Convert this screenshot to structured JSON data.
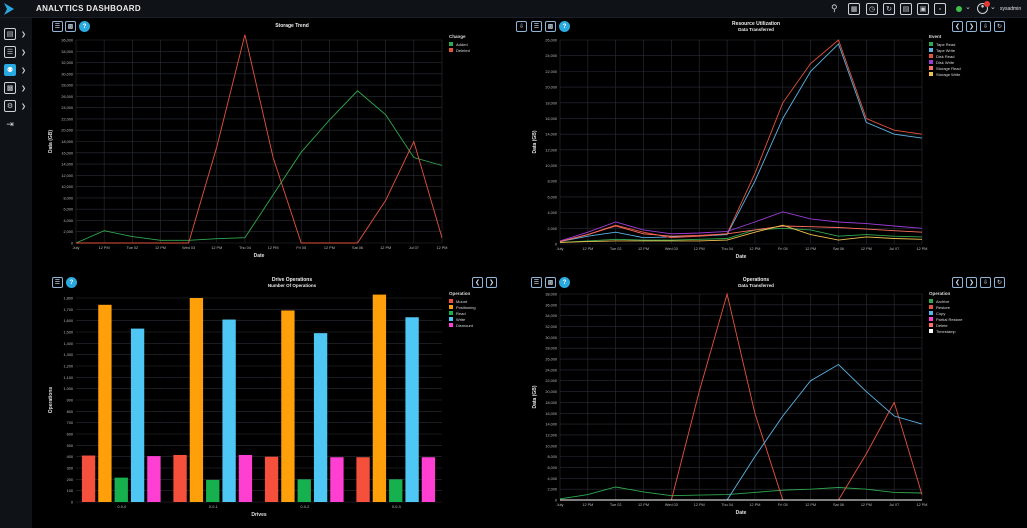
{
  "app": {
    "title": "ANALYTICS DASHBOARD"
  },
  "topbar": {
    "icons": [
      "search-icon",
      "film-icon",
      "history-icon",
      "refresh-icon",
      "report-icon",
      "server-icon",
      "clipboard-icon"
    ],
    "status_color": "#3fbf4a",
    "user_name": "sysadmin"
  },
  "sidebar": {
    "items": [
      {
        "icon": "chart-icon"
      },
      {
        "icon": "storage-icon"
      },
      {
        "icon": "person-icon",
        "active": true
      },
      {
        "icon": "drive-icon"
      },
      {
        "icon": "settings-icon"
      },
      {
        "icon": "logout-icon"
      }
    ]
  },
  "colors": {
    "accent": "#29a9e1",
    "grid": "#2a2e37",
    "axis_text": "#bdbdbd"
  },
  "panels": {
    "storage": {
      "title": "Storage Trend",
      "subtitle": "",
      "legend_title": "Change",
      "chart_data": {
        "type": "line",
        "title": "Storage Trend",
        "xlabel": "Date",
        "ylabel": "Data (GB)",
        "ylim": [
          0,
          38000
        ],
        "yticks": [
          "0",
          "2,000",
          "4,000",
          "6,000",
          "8,000",
          "10,000",
          "12,000",
          "14,000",
          "16,000",
          "18,000",
          "20,000",
          "22,000",
          "24,000",
          "26,000",
          "28,000",
          "30,000",
          "32,000",
          "34,000",
          "36,000"
        ],
        "x": [
          "July",
          "12 PM",
          "Tue 02",
          "12 PM",
          "Wed 03",
          "12 PM",
          "Thu 04",
          "12 PM",
          "Fri 05",
          "12 PM",
          "Sat 06",
          "12 PM",
          "Jul 07",
          "12 PM"
        ],
        "series": [
          {
            "name": "Added",
            "color": "#2fa84f",
            "values": [
              0,
              2300,
              1200,
              500,
              500,
              800,
              1000,
              9000,
              17000,
              23000,
              28500,
              24000,
              16000,
              14500
            ]
          },
          {
            "name": "Deleted",
            "color": "#e5533d",
            "values": [
              0,
              0,
              0,
              0,
              0,
              18000,
              39000,
              16000,
              0,
              0,
              0,
              8000,
              19000,
              1000
            ]
          }
        ]
      }
    },
    "resource": {
      "title": "Resource Utilization",
      "subtitle": "Data Transferred",
      "legend_title": "Event",
      "chart_data": {
        "type": "line",
        "title": "Resource Utilization",
        "xlabel": "Date",
        "ylabel": "Data (GB)",
        "ylim": [
          0,
          26000
        ],
        "yticks": [
          "0",
          "2,000",
          "4,000",
          "6,000",
          "8,000",
          "10,000",
          "12,000",
          "14,000",
          "16,000",
          "18,000",
          "20,000",
          "22,000",
          "24,000",
          "26,000"
        ],
        "x": [
          "July",
          "12 PM",
          "Tue 02",
          "12 PM",
          "Wed 03",
          "12 PM",
          "Thu 04",
          "12 PM",
          "Fri 05",
          "12 PM",
          "Sat 06",
          "12 PM",
          "Jul 07",
          "12 PM"
        ],
        "series": [
          {
            "name": "Tape Read",
            "color": "#2fa84f",
            "values": [
              200,
              400,
              600,
              500,
              500,
              600,
              700,
              1800,
              2000,
              1800,
              1000,
              1200,
              1000,
              900
            ]
          },
          {
            "name": "Tape Write",
            "color": "#5ab4e5",
            "values": [
              300,
              1000,
              1500,
              800,
              900,
              1000,
              1200,
              8000,
              16000,
              22000,
              25500,
              15500,
              14000,
              13500
            ]
          },
          {
            "name": "Disk Read",
            "color": "#e5533d",
            "values": [
              300,
              1200,
              2400,
              1500,
              800,
              1000,
              1300,
              9000,
              18000,
              23000,
              26000,
              16000,
              14500,
              14000
            ]
          },
          {
            "name": "Disk Write",
            "color": "#9b3cd6",
            "values": [
              400,
              1500,
              2800,
              1800,
              1300,
              1400,
              1600,
              2800,
              4100,
              3200,
              2800,
              2600,
              2300,
              2000
            ]
          },
          {
            "name": "Storage Read",
            "color": "#ff6f61",
            "values": [
              300,
              1200,
              2300,
              1300,
              1000,
              1100,
              1300,
              1800,
              2300,
              2200,
              2100,
              1900,
              1700,
              1500
            ]
          },
          {
            "name": "Storage Write",
            "color": "#f2c14e",
            "values": [
              200,
              300,
              400,
              400,
              400,
              400,
              500,
              1500,
              2400,
              1200,
              500,
              900,
              700,
              600
            ]
          }
        ]
      }
    },
    "drive": {
      "title": "Drive Operations",
      "subtitle": "Number Of Operations",
      "legend_title": "Operation",
      "chart_data": {
        "type": "bar",
        "title": "Drive Operations",
        "xlabel": "Drives",
        "ylabel": "Operations",
        "ylim": [
          0,
          1800
        ],
        "yticks": [
          "0",
          "100",
          "200",
          "300",
          "400",
          "500",
          "600",
          "700",
          "800",
          "900",
          "1,000",
          "1,100",
          "1,200",
          "1,300",
          "1,400",
          "1,500",
          "1,600",
          "1,700",
          "1,800"
        ],
        "categories": [
          "0-0-0",
          "0-0-1",
          "0-0-2",
          "0-0-3"
        ],
        "series": [
          {
            "name": "Mount",
            "color": "#f4503b",
            "values": [
              410,
              415,
              400,
              395
            ]
          },
          {
            "name": "Positioning",
            "color": "#ff9f0a",
            "values": [
              1740,
              1800,
              1690,
              1830
            ]
          },
          {
            "name": "Read",
            "color": "#17b04e",
            "values": [
              215,
              195,
              200,
              200
            ]
          },
          {
            "name": "Write",
            "color": "#4fc7f5",
            "values": [
              1530,
              1610,
              1490,
              1630
            ]
          },
          {
            "name": "Dismount",
            "color": "#ff3fd2",
            "values": [
              405,
              415,
              395,
              395
            ]
          }
        ]
      }
    },
    "operations": {
      "title": "Operations",
      "subtitle": "Data Transferred",
      "legend_title": "Operation",
      "chart_data": {
        "type": "line",
        "title": "Operations",
        "xlabel": "Date",
        "ylabel": "Data (GB)",
        "ylim": [
          0,
          38000
        ],
        "yticks": [
          "0",
          "2,000",
          "4,000",
          "6,000",
          "8,000",
          "10,000",
          "12,000",
          "14,000",
          "16,000",
          "18,000",
          "20,000",
          "22,000",
          "24,000",
          "26,000",
          "28,000",
          "30,000",
          "32,000",
          "34,000",
          "36,000",
          "38,000"
        ],
        "x": [
          "July",
          "12 PM",
          "Tue 02",
          "12 PM",
          "Wed 03",
          "12 PM",
          "Thu 04",
          "12 PM",
          "Fri 05",
          "12 PM",
          "Sat 06",
          "12 PM",
          "Jul 07",
          "12 PM"
        ],
        "series": [
          {
            "name": "Archive",
            "color": "#2fa84f",
            "values": [
              200,
              1000,
              2400,
              1500,
              800,
              900,
              1000,
              1400,
              1800,
              2000,
              2300,
              2000,
              1400,
              1300
            ]
          },
          {
            "name": "Restore",
            "color": "#e5533d",
            "values": [
              0,
              0,
              0,
              0,
              0,
              20000,
              38000,
              16000,
              0,
              0,
              0,
              8500,
              18000,
              1000
            ]
          },
          {
            "name": "Copy",
            "color": "#5ab4e5",
            "values": [
              0,
              0,
              0,
              0,
              0,
              0,
              0,
              8000,
              15500,
              22000,
              25000,
              20000,
              15500,
              14000
            ]
          },
          {
            "name": "Partial Restore",
            "color": "#ff3fd2",
            "values": [
              0,
              0,
              0,
              0,
              0,
              0,
              0,
              0,
              0,
              0,
              0,
              0,
              0,
              0
            ]
          },
          {
            "name": "Delete",
            "color": "#ff6f61",
            "values": [
              0,
              0,
              0,
              0,
              0,
              0,
              0,
              0,
              0,
              0,
              0,
              0,
              0,
              0
            ]
          },
          {
            "name": "Timestamp",
            "color": "#ffffff",
            "values": [
              0,
              0,
              0,
              0,
              0,
              0,
              0,
              0,
              0,
              0,
              0,
              0,
              0,
              0
            ]
          }
        ]
      }
    }
  }
}
